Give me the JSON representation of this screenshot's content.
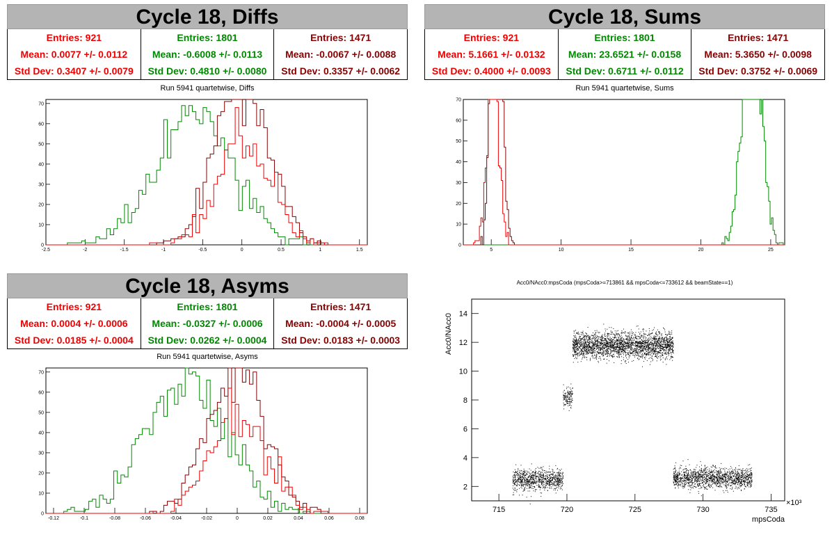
{
  "colors": {
    "red": "#ee0000",
    "green": "#008800",
    "darkred": "#880000"
  },
  "panels": [
    {
      "id": "diffs",
      "title": "Cycle 18, Diffs",
      "subtitle": "Run 5941 quartetwise, Diffs",
      "stats": [
        {
          "color": "red",
          "entries": "Entries: 921",
          "mean": "Mean: 0.0077 +/- 0.0112",
          "std": "Std Dev: 0.3407 +/- 0.0079"
        },
        {
          "color": "green",
          "entries": "Entries: 1801",
          "mean": "Mean: -0.6008 +/- 0.0113",
          "std": "Std Dev: 0.4810 +/- 0.0080"
        },
        {
          "color": "darkred",
          "entries": "Entries: 1471",
          "mean": "Mean: -0.0067 +/- 0.0088",
          "std": "Std Dev: 0.3357 +/- 0.0062"
        }
      ],
      "xticks": [
        "-2.5",
        "-2",
        "-1.5",
        "-1",
        "-0.5",
        "0",
        "0.5",
        "1",
        "1.5"
      ],
      "yticks": [
        "0",
        "10",
        "20",
        "30",
        "40",
        "50",
        "60",
        "70"
      ]
    },
    {
      "id": "sums",
      "title": "Cycle 18, Sums",
      "subtitle": "Run 5941 quartetwise, Sums",
      "stats": [
        {
          "color": "red",
          "entries": "Entries: 921",
          "mean": "Mean: 5.1661 +/- 0.0132",
          "std": "Std Dev: 0.4000 +/- 0.0093"
        },
        {
          "color": "green",
          "entries": "Entries: 1801",
          "mean": "Mean: 23.6521 +/- 0.0158",
          "std": "Std Dev: 0.6711 +/- 0.0112"
        },
        {
          "color": "darkred",
          "entries": "Entries: 1471",
          "mean": "Mean: 5.3650 +/- 0.0098",
          "std": "Std Dev: 0.3752 +/- 0.0069"
        }
      ],
      "xticks": [
        "5",
        "10",
        "15",
        "20",
        "25"
      ],
      "yticks": [
        "0",
        "10",
        "20",
        "30",
        "40",
        "50",
        "60",
        "70"
      ]
    },
    {
      "id": "asyms",
      "title": "Cycle 18, Asyms",
      "subtitle": "Run 5941 quartetwise, Asyms",
      "stats": [
        {
          "color": "red",
          "entries": "Entries: 921",
          "mean": "Mean: 0.0004 +/- 0.0006",
          "std": "Std Dev: 0.0185 +/- 0.0004"
        },
        {
          "color": "green",
          "entries": "Entries: 1801",
          "mean": "Mean: -0.0327 +/- 0.0006",
          "std": "Std Dev: 0.0262 +/- 0.0004"
        },
        {
          "color": "darkred",
          "entries": "Entries: 1471",
          "mean": "Mean: -0.0004 +/- 0.0005",
          "std": "Std Dev: 0.0183 +/- 0.0003"
        }
      ],
      "xticks": [
        "-0.12",
        "-0.1",
        "-0.08",
        "-0.06",
        "-0.04",
        "-0.02",
        "0",
        "0.02",
        "0.04",
        "0.06",
        "0.08"
      ],
      "yticks": [
        "0",
        "10",
        "20",
        "30",
        "40",
        "50",
        "60",
        "70"
      ]
    }
  ],
  "scatter": {
    "title": "Acc0/NAcc0:mpsCoda (mpsCoda>=713861 && mpsCoda<=733612 && beamState==1)",
    "ylabel": "Acc0/NAcc0",
    "xlabel": "mpsCoda",
    "xexp": "×10³",
    "xticks": [
      "715",
      "720",
      "725",
      "730",
      "735"
    ],
    "yticks": [
      "2",
      "4",
      "6",
      "8",
      "10",
      "12",
      "14"
    ]
  },
  "chart_data": [
    {
      "type": "bar",
      "title": "Cycle 18, Diffs",
      "xlim": [
        -2.5,
        1.6
      ],
      "ylim": [
        0,
        72
      ],
      "series": [
        {
          "name": "Entries: 921",
          "mean": 0.0077,
          "std": 0.3407,
          "entries": 921
        },
        {
          "name": "Entries: 1801",
          "mean": -0.6008,
          "std": 0.481,
          "entries": 1801
        },
        {
          "name": "Entries: 1471",
          "mean": -0.0067,
          "std": 0.3357,
          "entries": 1471
        }
      ]
    },
    {
      "type": "bar",
      "title": "Cycle 18, Sums",
      "xlim": [
        3,
        26
      ],
      "ylim": [
        0,
        70
      ],
      "series": [
        {
          "name": "Entries: 921",
          "mean": 5.1661,
          "std": 0.4,
          "entries": 921
        },
        {
          "name": "Entries: 1801",
          "mean": 23.6521,
          "std": 0.6711,
          "entries": 1801
        },
        {
          "name": "Entries: 1471",
          "mean": 5.365,
          "std": 0.3752,
          "entries": 1471
        }
      ]
    },
    {
      "type": "bar",
      "title": "Cycle 18, Asyms",
      "xlim": [
        -0.125,
        0.085
      ],
      "ylim": [
        0,
        72
      ],
      "series": [
        {
          "name": "Entries: 921",
          "mean": 0.0004,
          "std": 0.0185,
          "entries": 921
        },
        {
          "name": "Entries: 1801",
          "mean": -0.0327,
          "std": 0.0262,
          "entries": 1801
        },
        {
          "name": "Entries: 1471",
          "mean": -0.0004,
          "std": 0.0183,
          "entries": 1471
        }
      ]
    },
    {
      "type": "scatter",
      "title": "Acc0/NAcc0:mpsCoda (mpsCoda>=713861 && mpsCoda<=733612 && beamState==1)",
      "xlabel": "mpsCoda",
      "ylabel": "Acc0/NAcc0",
      "xlim": [
        713,
        736
      ],
      "ylim": [
        1,
        15
      ],
      "clusters": [
        {
          "x": [
            716,
            719.7
          ],
          "y_mean": 2.5,
          "y_spread": 0.8
        },
        {
          "x": [
            719.7,
            720.4
          ],
          "y_mean": 8.2,
          "y_spread": 0.8
        },
        {
          "x": [
            720.4,
            727.8
          ],
          "y_mean": 11.8,
          "y_spread": 1.0
        },
        {
          "x": [
            727.8,
            733.6
          ],
          "y_mean": 2.6,
          "y_spread": 0.8
        }
      ]
    }
  ]
}
